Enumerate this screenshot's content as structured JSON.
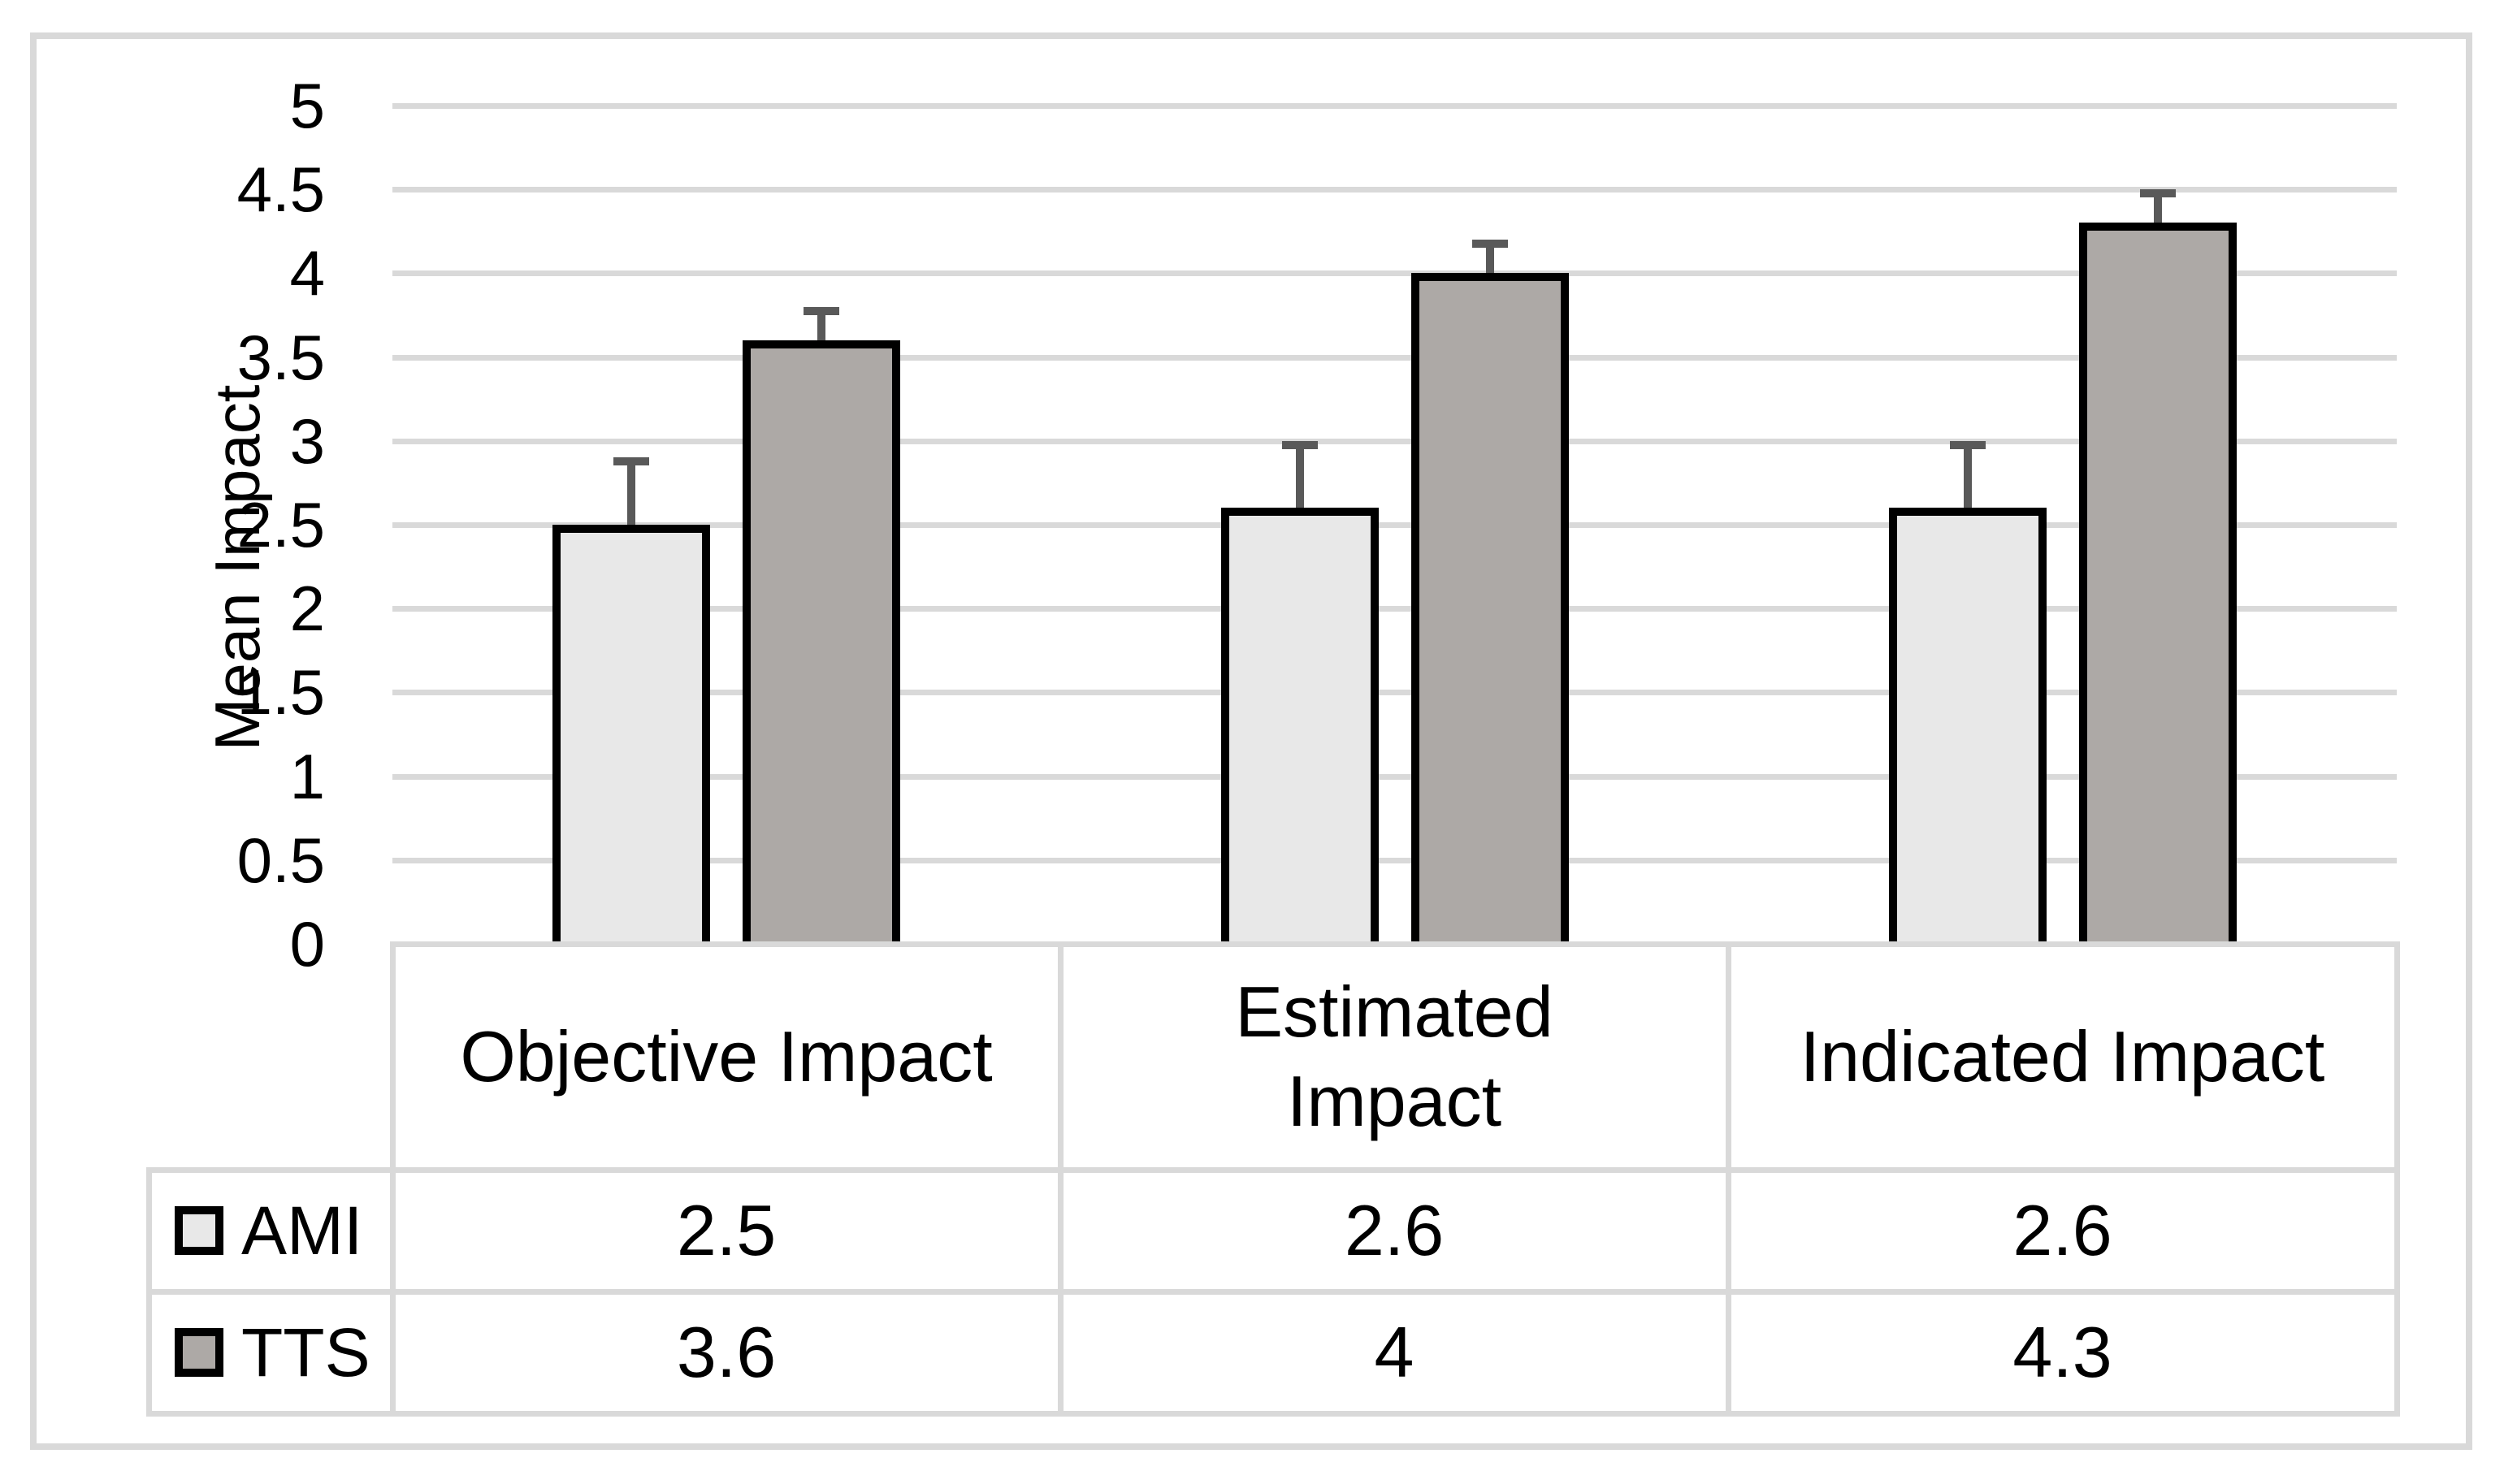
{
  "chart_data": {
    "type": "bar",
    "title": "",
    "categories": [
      "Objective Impact",
      "Estimated Impact",
      "Indicated Impact"
    ],
    "series": [
      {
        "name": "AMI",
        "values": [
          2.5,
          2.6,
          2.6
        ],
        "error_plus": [
          0.4,
          0.4,
          0.4
        ],
        "fill": "#E8E8E8"
      },
      {
        "name": "TTS",
        "values": [
          3.6,
          4,
          4.3
        ],
        "error_plus": [
          0.2,
          0.2,
          0.2
        ],
        "fill": "#ADA9A6"
      }
    ],
    "xlabel": "",
    "ylabel": "Mean Impact",
    "ylim": [
      0,
      5
    ],
    "ytick_labels": [
      "5",
      "4.5",
      "4",
      "3.5",
      "3",
      "2.5",
      "2",
      "1.5",
      "1",
      "0.5",
      "0"
    ],
    "grid": true,
    "gridline_color": "#D9D9D9",
    "error_bar_color": "#595959",
    "bar_outline_color": "#000000",
    "legend_position": "table-rows-left"
  },
  "data_table": {
    "column_headers_display": [
      "Objective Impact",
      "Estimated\nImpact",
      "Indicated Impact"
    ],
    "rows": [
      {
        "label": "AMI",
        "key_color": "#E8E8E8",
        "values": [
          "2.5",
          "2.6",
          "2.6"
        ]
      },
      {
        "label": "TTS",
        "key_color": "#ADA9A6",
        "values": [
          "3.6",
          "4",
          "4.3"
        ]
      }
    ]
  }
}
